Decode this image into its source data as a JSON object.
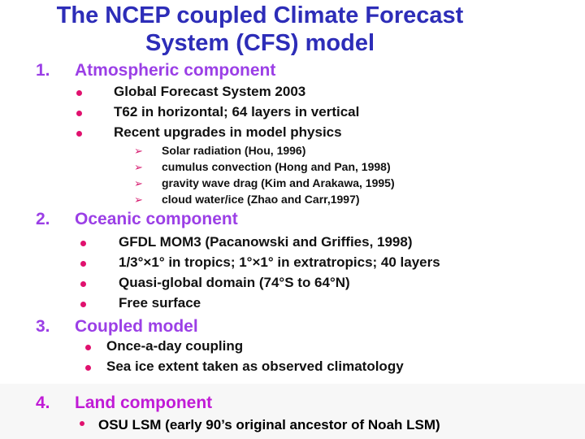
{
  "title": {
    "line1": "The NCEP coupled Climate Forecast",
    "line2": "System (CFS) model"
  },
  "sections": [
    {
      "num": "1.",
      "heading": "Atmospheric component",
      "items": [
        "Global Forecast System 2003",
        "T62 in horizontal; 64 layers in vertical",
        "Recent upgrades in model physics"
      ],
      "subitems": [
        "Solar radiation (Hou, 1996)",
        "cumulus convection (Hong and Pan, 1998)",
        "gravity wave drag (Kim and Arakawa, 1995)",
        "cloud water/ice (Zhao and Carr,1997)"
      ]
    },
    {
      "num": "2.",
      "heading": "Oceanic component",
      "items": [
        "GFDL MOM3 (Pacanowski and Griffies, 1998)",
        "1/3°×1° in tropics; 1°×1° in extratropics; 40 layers",
        "Quasi-global domain (74°S to 64°N)",
        "Free surface"
      ]
    },
    {
      "num": "3.",
      "heading": "Coupled model",
      "items": [
        "Once-a-day coupling",
        "Sea ice extent taken as observed climatology"
      ]
    },
    {
      "num": "4.",
      "heading": "Land component",
      "items": [
        "OSU LSM   (early 90’s original ancestor of Noah LSM)"
      ]
    }
  ],
  "colors": {
    "title": "#2d2db8",
    "heading": "#9b3fe6",
    "land_heading": "#c01bd6",
    "bullet": "#e0116e"
  }
}
